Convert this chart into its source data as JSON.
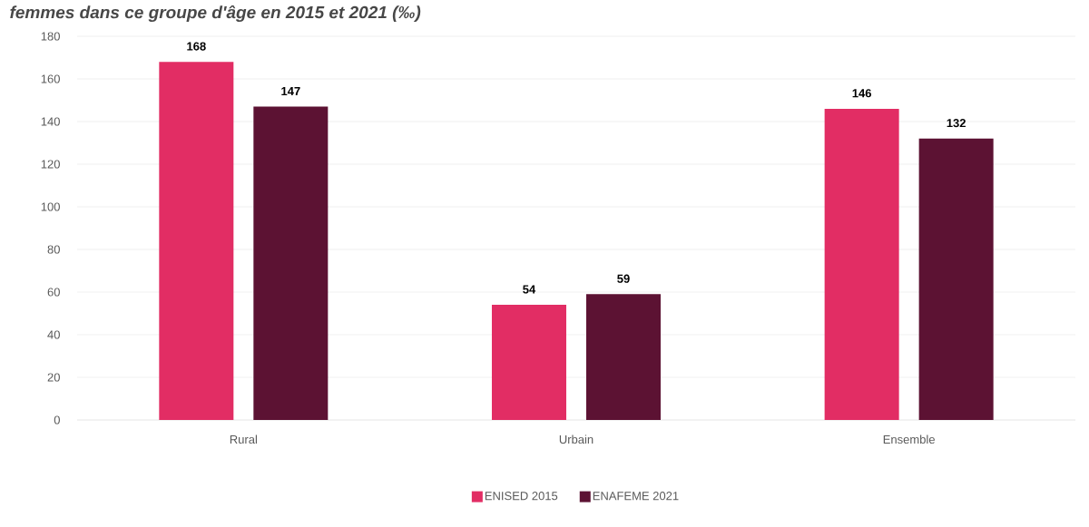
{
  "chart_data": {
    "type": "bar",
    "title": "femmes dans ce groupe d'âge en 2015 et 2021 (‰)",
    "categories": [
      "Rural",
      "Urbain",
      "Ensemble"
    ],
    "series": [
      {
        "name": "ENISED 2015",
        "color": "#e22d64",
        "values": [
          168,
          54,
          146
        ]
      },
      {
        "name": "ENAFEME 2021",
        "color": "#5c1233",
        "values": [
          147,
          59,
          132
        ]
      }
    ],
    "ylim": [
      0,
      180
    ],
    "yticks": [
      0,
      20,
      40,
      60,
      80,
      100,
      120,
      140,
      160,
      180
    ],
    "grid": "y",
    "legend": "bottom",
    "data_labels": true
  }
}
